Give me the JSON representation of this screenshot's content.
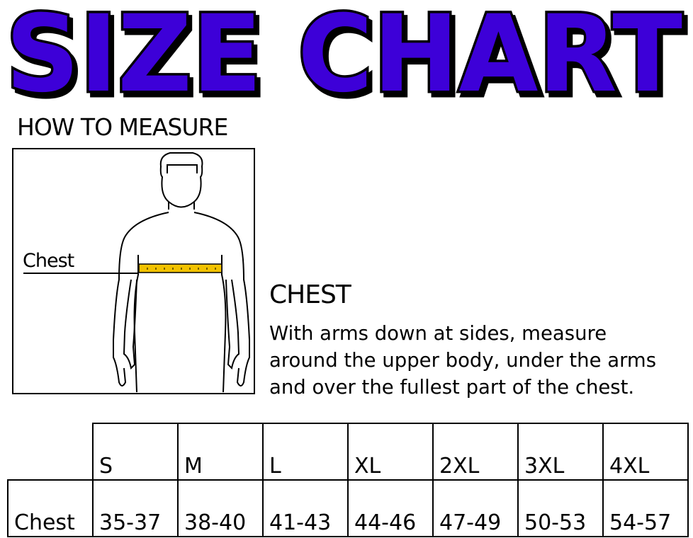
{
  "title": "SIZE CHART",
  "colors": {
    "title_fill": "#3d00d8",
    "title_outline": "#000000",
    "tape": "#f2c200"
  },
  "how_to_measure": "HOW TO MEASURE",
  "figure": {
    "chest_label": "Chest"
  },
  "chest": {
    "heading": "CHEST",
    "lines": [
      "With arms down at sides, measure",
      "around the upper body, under the arms",
      "and over the fullest part of the chest."
    ]
  },
  "table": {
    "sizes": [
      "S",
      "M",
      "L",
      "XL",
      "2XL",
      "3XL",
      "4XL"
    ],
    "row_label": "Chest",
    "values": [
      "35-37",
      "38-40",
      "41-43",
      "44-46",
      "47-49",
      "50-53",
      "54-57"
    ]
  }
}
